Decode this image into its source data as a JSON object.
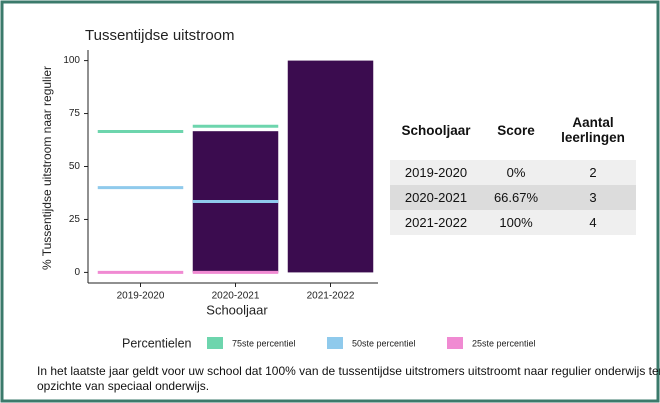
{
  "chart_data": {
    "type": "bar",
    "title": "Tussentijdse uitstroom",
    "ylabel": "% Tussentijdse uitstroom naar regulier",
    "xlabel": "Schooljaar",
    "categories": [
      "2019-2020",
      "2020-2021",
      "2021-2022"
    ],
    "values": [
      0,
      66.67,
      100
    ],
    "color": "#3b0c4f",
    "ylim": [
      -5,
      105
    ],
    "yticks": [
      0,
      25,
      50,
      75,
      100
    ],
    "legend_title": "Percentielen",
    "series": [
      {
        "name": "75ste percentiel",
        "color": "#6dd5ad",
        "values": [
          66.5,
          69,
          null
        ]
      },
      {
        "name": "50ste percentiel",
        "color": "#8fcaec",
        "values": [
          40,
          33.5,
          null
        ]
      },
      {
        "name": "25ste percentiel",
        "color": "#f08ad2",
        "values": [
          0,
          0,
          null
        ]
      }
    ],
    "legend": "bottom"
  },
  "table": {
    "header": [
      "Schooljaar",
      "Score",
      "Aantal leerlingen"
    ],
    "rows": [
      [
        "2019-2020",
        "0%",
        2
      ],
      [
        "2020-2021",
        "66.67%",
        3
      ],
      [
        "2021-2022",
        "100%",
        4
      ]
    ]
  },
  "note": "In het laatste jaar geldt voor uw school dat 100% van de tussentijdse uitstromers uitstroomt naar regulier onderwijs ten opzichte van speciaal onderwijs."
}
